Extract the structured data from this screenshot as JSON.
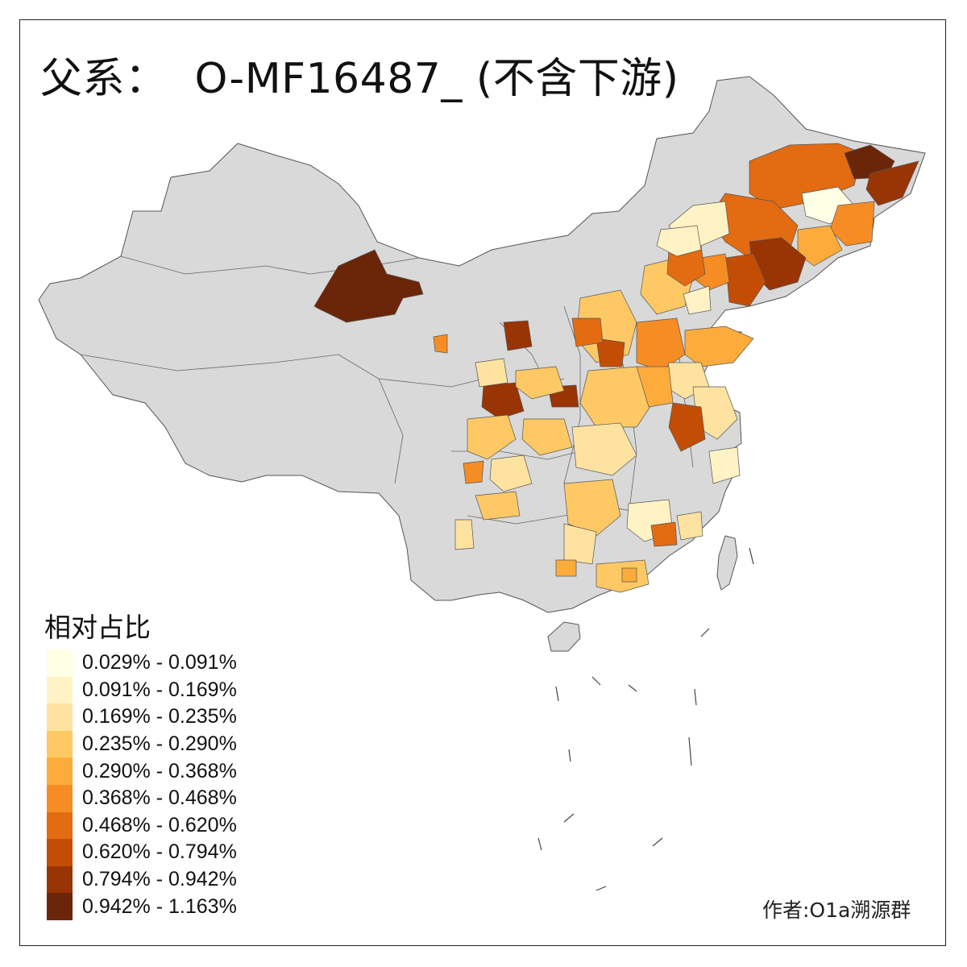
{
  "title": "父系：  O-MF16487_ (不含下游)",
  "legend": {
    "title": "相对占比",
    "bins": [
      {
        "label": "0.029% - 0.091%",
        "color": "#ffffe5"
      },
      {
        "label": "0.091% - 0.169%",
        "color": "#fff2c4"
      },
      {
        "label": "0.169% - 0.235%",
        "color": "#fee3a0"
      },
      {
        "label": "0.235% - 0.290%",
        "color": "#fec965"
      },
      {
        "label": "0.290% - 0.368%",
        "color": "#fdac3b"
      },
      {
        "label": "0.368% - 0.468%",
        "color": "#f68d24"
      },
      {
        "label": "0.468% - 0.620%",
        "color": "#e36b12"
      },
      {
        "label": "0.620% - 0.794%",
        "color": "#c44d05"
      },
      {
        "label": "0.794% - 0.942%",
        "color": "#993404"
      },
      {
        "label": "0.942% - 1.163%",
        "color": "#6b2508"
      }
    ]
  },
  "credit": "作者:O1a溯源群",
  "colors": {
    "nodata": "#d9d9d9",
    "border": "#555555"
  }
}
